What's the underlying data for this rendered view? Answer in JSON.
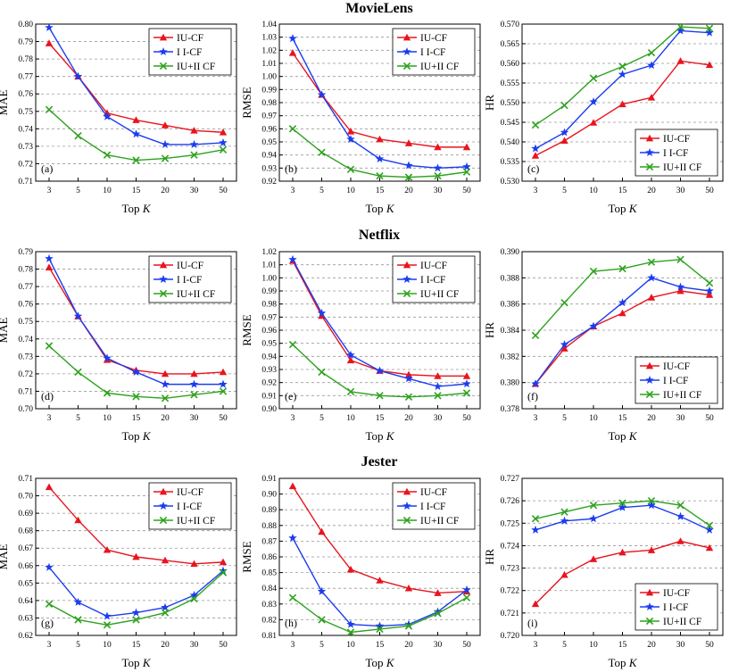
{
  "series_colors": [
    "#e8141e",
    "#1c3cf0",
    "#2ea21e"
  ],
  "marker_types": [
    "triangle",
    "star",
    "x"
  ],
  "datasets": [
    {
      "name": "MovieLens"
    },
    {
      "name": "Netflix"
    },
    {
      "name": "Jester"
    }
  ],
  "chart_data": [
    {
      "type": "line",
      "panel_label": "(a)",
      "ylabel": "MAE",
      "xlabel_prefix": "Top ",
      "xlabel_var": "K",
      "categories": [
        "3",
        "5",
        "10",
        "15",
        "20",
        "30",
        "50"
      ],
      "ylim": [
        0.71,
        0.8
      ],
      "yticks": [
        "0.71",
        "0.72",
        "0.73",
        "0.74",
        "0.75",
        "0.76",
        "0.77",
        "0.78",
        "0.79",
        "0.80"
      ],
      "legend_position": "top-right",
      "series": [
        {
          "name": "IU-CF",
          "values": [
            0.789,
            0.77,
            0.749,
            0.745,
            0.742,
            0.739,
            0.738
          ]
        },
        {
          "name": "I I-CF",
          "values": [
            0.798,
            0.77,
            0.747,
            0.737,
            0.731,
            0.731,
            0.732
          ]
        },
        {
          "name": "IU+II CF",
          "values": [
            0.751,
            0.736,
            0.725,
            0.722,
            0.723,
            0.725,
            0.728
          ]
        }
      ]
    },
    {
      "type": "line",
      "panel_label": "(b)",
      "ylabel": "RMSE",
      "xlabel_prefix": "Top ",
      "xlabel_var": "K",
      "categories": [
        "3",
        "5",
        "10",
        "15",
        "20",
        "30",
        "50"
      ],
      "ylim": [
        0.92,
        1.04
      ],
      "yticks": [
        "0.92",
        "0.93",
        "0.94",
        "0.95",
        "0.96",
        "0.97",
        "0.98",
        "0.99",
        "1.00",
        "1.01",
        "1.02",
        "1.03",
        "1.04"
      ],
      "legend_position": "top-right",
      "series": [
        {
          "name": "IU-CF",
          "values": [
            1.018,
            0.986,
            0.958,
            0.952,
            0.949,
            0.946,
            0.946
          ]
        },
        {
          "name": "I I-CF",
          "values": [
            1.029,
            0.986,
            0.952,
            0.937,
            0.932,
            0.93,
            0.931
          ]
        },
        {
          "name": "IU+II CF",
          "values": [
            0.96,
            0.942,
            0.929,
            0.924,
            0.923,
            0.924,
            0.927
          ]
        }
      ]
    },
    {
      "type": "line",
      "panel_label": "(c)",
      "ylabel": "HR",
      "xlabel_prefix": "Top ",
      "xlabel_var": "K",
      "categories": [
        "3",
        "5",
        "10",
        "15",
        "20",
        "30",
        "50"
      ],
      "ylim": [
        0.53,
        0.57
      ],
      "yticks": [
        "0.530",
        "0.535",
        "0.540",
        "0.545",
        "0.550",
        "0.555",
        "0.560",
        "0.565",
        "0.570"
      ],
      "legend_position": "bottom-right",
      "series": [
        {
          "name": "IU-CF",
          "values": [
            0.5365,
            0.5403,
            0.5449,
            0.5496,
            0.5513,
            0.5606,
            0.5596
          ]
        },
        {
          "name": "I I-CF",
          "values": [
            0.5383,
            0.5424,
            0.5502,
            0.5572,
            0.5595,
            0.5683,
            0.5678
          ]
        },
        {
          "name": "IU+II CF",
          "values": [
            0.5443,
            0.5493,
            0.5562,
            0.5592,
            0.5627,
            0.5693,
            0.5689
          ]
        }
      ]
    },
    {
      "type": "line",
      "panel_label": "(d)",
      "ylabel": "MAE",
      "xlabel_prefix": "Top ",
      "xlabel_var": "K",
      "categories": [
        "3",
        "5",
        "10",
        "15",
        "20",
        "30",
        "50"
      ],
      "ylim": [
        0.7,
        0.79
      ],
      "yticks": [
        "0.70",
        "0.71",
        "0.72",
        "0.73",
        "0.74",
        "0.75",
        "0.76",
        "0.77",
        "0.78",
        "0.79"
      ],
      "legend_position": "top-right",
      "series": [
        {
          "name": "IU-CF",
          "values": [
            0.781,
            0.753,
            0.728,
            0.722,
            0.72,
            0.72,
            0.721
          ]
        },
        {
          "name": "I I-CF",
          "values": [
            0.786,
            0.753,
            0.729,
            0.721,
            0.714,
            0.714,
            0.714
          ]
        },
        {
          "name": "IU+II CF",
          "values": [
            0.736,
            0.721,
            0.709,
            0.707,
            0.706,
            0.708,
            0.71
          ]
        }
      ]
    },
    {
      "type": "line",
      "panel_label": "(e)",
      "ylabel": "RMSE",
      "xlabel_prefix": "Top ",
      "xlabel_var": "K",
      "categories": [
        "3",
        "5",
        "10",
        "15",
        "20",
        "30",
        "50"
      ],
      "ylim": [
        0.9,
        1.02
      ],
      "yticks": [
        "0.90",
        "0.91",
        "0.92",
        "0.93",
        "0.94",
        "0.95",
        "0.96",
        "0.97",
        "0.98",
        "0.99",
        "1.00",
        "1.01",
        "1.02"
      ],
      "legend_position": "top-right",
      "series": [
        {
          "name": "IU-CF",
          "values": [
            1.013,
            0.971,
            0.937,
            0.929,
            0.926,
            0.925,
            0.925
          ]
        },
        {
          "name": "I I-CF",
          "values": [
            1.014,
            0.973,
            0.941,
            0.929,
            0.923,
            0.917,
            0.919
          ]
        },
        {
          "name": "IU+II CF",
          "values": [
            0.949,
            0.928,
            0.913,
            0.91,
            0.909,
            0.91,
            0.912
          ]
        }
      ]
    },
    {
      "type": "line",
      "panel_label": "(f)",
      "ylabel": "HR",
      "xlabel_prefix": "Top ",
      "xlabel_var": "K",
      "categories": [
        "3",
        "5",
        "10",
        "15",
        "20",
        "30",
        "50"
      ],
      "ylim": [
        0.378,
        0.39
      ],
      "yticks": [
        "0.378",
        "0.380",
        "0.382",
        "0.384",
        "0.386",
        "0.388",
        "0.390"
      ],
      "legend_position": "bottom-right",
      "series": [
        {
          "name": "IU-CF",
          "values": [
            0.3799,
            0.3826,
            0.3843,
            0.3853,
            0.3865,
            0.387,
            0.3867
          ]
        },
        {
          "name": "I I-CF",
          "values": [
            0.3799,
            0.3829,
            0.3843,
            0.3861,
            0.388,
            0.3873,
            0.387
          ]
        },
        {
          "name": "IU+II CF",
          "values": [
            0.3836,
            0.3861,
            0.3885,
            0.3887,
            0.3892,
            0.3894,
            0.3876
          ]
        }
      ]
    },
    {
      "type": "line",
      "panel_label": "(g)",
      "ylabel": "MAE",
      "xlabel_prefix": "Top ",
      "xlabel_var": "K",
      "categories": [
        "3",
        "5",
        "10",
        "15",
        "20",
        "30",
        "50"
      ],
      "ylim": [
        0.62,
        0.71
      ],
      "yticks": [
        "0.62",
        "0.63",
        "0.64",
        "0.65",
        "0.66",
        "0.67",
        "0.68",
        "0.69",
        "0.70",
        "0.71"
      ],
      "legend_position": "top-right",
      "series": [
        {
          "name": "IU-CF",
          "values": [
            0.705,
            0.686,
            0.669,
            0.665,
            0.663,
            0.661,
            0.662
          ]
        },
        {
          "name": "I I-CF",
          "values": [
            0.659,
            0.639,
            0.631,
            0.633,
            0.636,
            0.643,
            0.657
          ]
        },
        {
          "name": "IU+II CF",
          "values": [
            0.638,
            0.629,
            0.626,
            0.629,
            0.633,
            0.641,
            0.656
          ]
        }
      ]
    },
    {
      "type": "line",
      "panel_label": "(h)",
      "ylabel": "RMSE",
      "xlabel_prefix": "Top ",
      "xlabel_var": "K",
      "categories": [
        "3",
        "5",
        "10",
        "15",
        "20",
        "30",
        "50"
      ],
      "ylim": [
        0.81,
        0.91
      ],
      "yticks": [
        "0.81",
        "0.82",
        "0.83",
        "0.84",
        "0.85",
        "0.86",
        "0.87",
        "0.88",
        "0.89",
        "0.90",
        "0.91"
      ],
      "legend_position": "top-right",
      "series": [
        {
          "name": "IU-CF",
          "values": [
            0.905,
            0.876,
            0.852,
            0.845,
            0.84,
            0.837,
            0.838
          ]
        },
        {
          "name": "I I-CF",
          "values": [
            0.872,
            0.838,
            0.817,
            0.816,
            0.817,
            0.825,
            0.839
          ]
        },
        {
          "name": "IU+II CF",
          "values": [
            0.834,
            0.82,
            0.812,
            0.814,
            0.816,
            0.824,
            0.834
          ]
        }
      ]
    },
    {
      "type": "line",
      "panel_label": "(i)",
      "ylabel": "HR",
      "xlabel_prefix": "Top ",
      "xlabel_var": "K",
      "categories": [
        "3",
        "5",
        "10",
        "15",
        "20",
        "30",
        "50"
      ],
      "ylim": [
        0.72,
        0.727
      ],
      "yticks": [
        "0.720",
        "0.721",
        "0.722",
        "0.723",
        "0.724",
        "0.725",
        "0.726",
        "0.727"
      ],
      "legend_position": "bottom-right",
      "series": [
        {
          "name": "IU-CF",
          "values": [
            0.7214,
            0.7227,
            0.7234,
            0.7237,
            0.7238,
            0.7242,
            0.7239
          ]
        },
        {
          "name": "I I-CF",
          "values": [
            0.7247,
            0.7251,
            0.7252,
            0.7257,
            0.7258,
            0.7253,
            0.7247
          ]
        },
        {
          "name": "IU+II CF",
          "values": [
            0.7252,
            0.7255,
            0.7258,
            0.7259,
            0.726,
            0.7258,
            0.7249
          ]
        }
      ]
    }
  ]
}
